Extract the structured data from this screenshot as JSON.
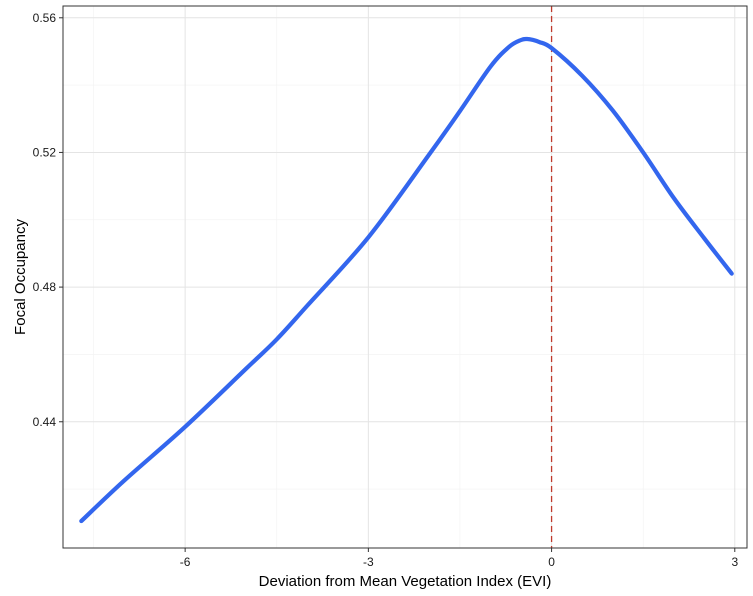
{
  "chart_data": {
    "type": "line",
    "title": "",
    "xlabel": "Deviation from Mean Vegetation Index (EVI)",
    "ylabel": "Focal Occupancy",
    "xlim": [
      -8.0,
      3.2
    ],
    "ylim": [
      0.4025,
      0.5635
    ],
    "x_ticks": [
      -6,
      -3,
      0,
      3
    ],
    "x_tick_labels": [
      "-6",
      "-3",
      "0",
      "3"
    ],
    "y_ticks": [
      0.44,
      0.48,
      0.52,
      0.56
    ],
    "y_tick_labels": [
      "0.44",
      "0.48",
      "0.52",
      "0.56"
    ],
    "grid": true,
    "legend": "none",
    "line_color": "#3366EE",
    "reference_line": {
      "x": 0,
      "color": "#C0392B",
      "style": "dashed"
    },
    "series": [
      {
        "x": [
          -7.7,
          -7.0,
          -6.0,
          -5.0,
          -4.5,
          -4.0,
          -3.0,
          -2.0,
          -1.5,
          -1.0,
          -0.7,
          -0.5,
          -0.4,
          -0.3,
          -0.2,
          0.0,
          0.5,
          1.0,
          1.5,
          2.0,
          2.5,
          2.95
        ],
        "y": [
          0.4105,
          0.4225,
          0.4385,
          0.4558,
          0.4645,
          0.4745,
          0.4948,
          0.5195,
          0.5323,
          0.5455,
          0.5513,
          0.5534,
          0.5537,
          0.5534,
          0.5528,
          0.551,
          0.5428,
          0.5325,
          0.52,
          0.5065,
          0.4945,
          0.484
        ]
      }
    ]
  }
}
